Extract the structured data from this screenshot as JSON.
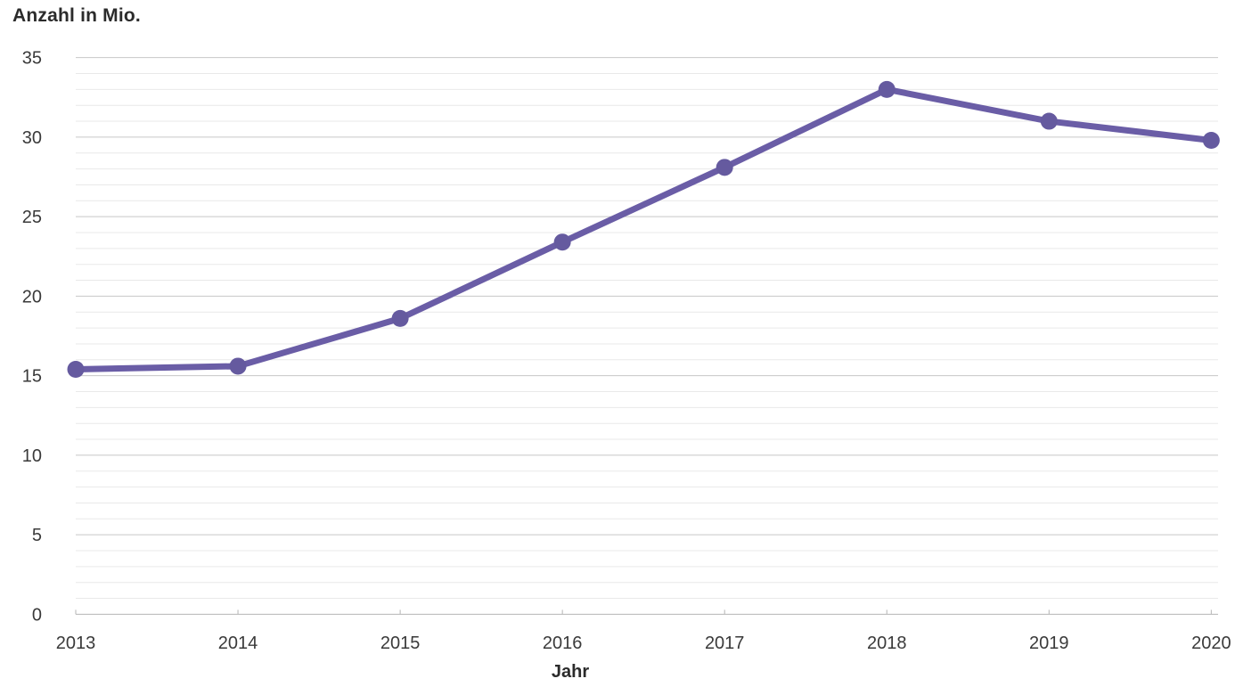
{
  "chart_data": {
    "type": "line",
    "y_axis_title": "Anzahl in Mio.",
    "xlabel": "Jahr",
    "categories": [
      "2013",
      "2014",
      "2015",
      "2016",
      "2017",
      "2018",
      "2019",
      "2020"
    ],
    "series": [
      {
        "name": "Anzahl in Mio.",
        "values": [
          15.4,
          15.6,
          18.6,
          23.4,
          28.1,
          33.0,
          31.0,
          29.8
        ]
      }
    ],
    "ylim": [
      0,
      35
    ],
    "yticks": [
      0,
      5,
      10,
      15,
      20,
      25,
      30,
      35
    ],
    "minor_grid_step": 1,
    "grid": "horizontal-major-and-minor",
    "legend": "none",
    "colors": {
      "line": "#6a5da6",
      "marker": "#655a9f",
      "grid_major": "#c7c7c7",
      "grid_minor": "#e9e9e9",
      "axis_line": "#b5b5b5",
      "tick_text": "#3a3a3a",
      "title_text": "#2b2b2b",
      "background": "#ffffff"
    }
  }
}
